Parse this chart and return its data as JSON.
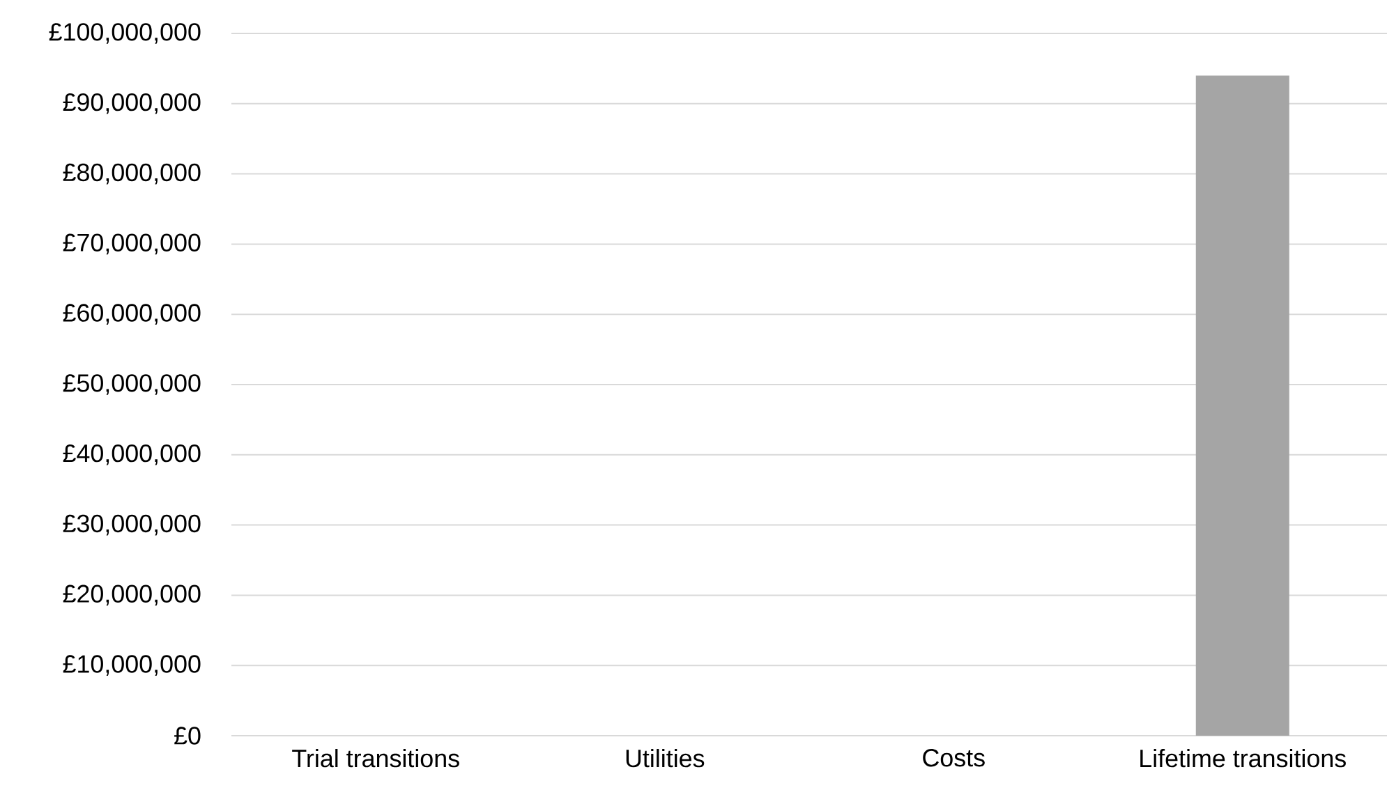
{
  "chart_data": {
    "type": "bar",
    "categories": [
      "Trial transitions",
      "Utilities",
      "Costs",
      "Lifetime transitions"
    ],
    "values": [
      0,
      0,
      0,
      94000000
    ],
    "color": "#a5a5a5",
    "ylim": [
      0,
      100000000
    ],
    "yticks": [
      {
        "value": 0,
        "label": "£0"
      },
      {
        "value": 10000000,
        "label": "£10,000,000"
      },
      {
        "value": 20000000,
        "label": "£20,000,000"
      },
      {
        "value": 30000000,
        "label": "£30,000,000"
      },
      {
        "value": 40000000,
        "label": "£40,000,000"
      },
      {
        "value": 50000000,
        "label": "£50,000,000"
      },
      {
        "value": 60000000,
        "label": "£60,000,000"
      },
      {
        "value": 70000000,
        "label": "£70,000,000"
      },
      {
        "value": 80000000,
        "label": "£80,000,000"
      },
      {
        "value": 90000000,
        "label": "£90,000,000"
      },
      {
        "value": 100000000,
        "label": "£100,000,000"
      }
    ],
    "grid": "y"
  }
}
